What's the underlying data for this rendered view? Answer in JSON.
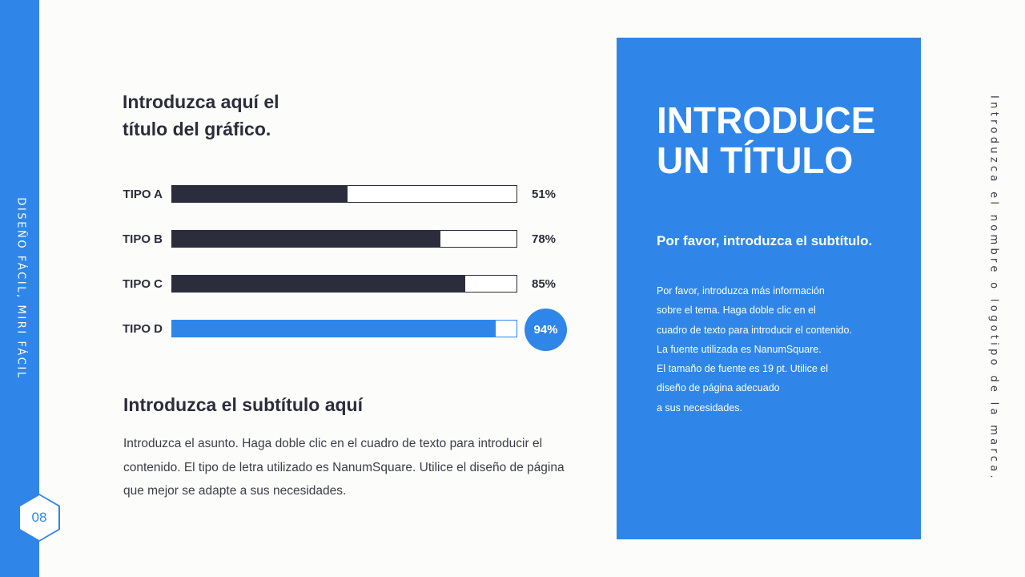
{
  "slide": {
    "side_label": "DISEÑO FÁCIL, MIRI FÁCIL",
    "page_number": "08",
    "brand_vertical": "Introduzca el nombre o logotipo de la marca."
  },
  "chart_data": {
    "type": "bar",
    "orientation": "horizontal",
    "title": "Introduzca aquí el título del gráfico.",
    "title_lines": [
      "Introduzca aquí el",
      "título del gráfico."
    ],
    "categories": [
      "TIPO A",
      "TIPO B",
      "TIPO C",
      "TIPO D"
    ],
    "values": [
      51,
      78,
      85,
      94
    ],
    "value_labels": [
      "51%",
      "78%",
      "85%",
      "94%"
    ],
    "xlim": [
      0,
      100
    ],
    "highlight_index": 3,
    "colors": {
      "default": "#2b2d3c",
      "highlight": "#2f86e8"
    }
  },
  "left": {
    "subtitle": "Introduzca el subtítulo aquí",
    "body": "Introduzca el asunto. Haga doble clic en el cuadro de texto para introducir el contenido. El tipo de letra utilizado es NanumSquare. Utilice el diseño de página que mejor se adapte a sus necesidades."
  },
  "panel": {
    "title_lines": [
      "INTRODUCE",
      "UN TÍTULO"
    ],
    "subtitle": "Por favor, introduzca el subtítulo.",
    "body_lines": [
      "Por favor, introduzca más información",
      "sobre el tema. Haga doble clic en el",
      "cuadro de texto para introducir el contenido.",
      "La fuente utilizada es NanumSquare.",
      "El tamaño de fuente es 19 pt. Utilice el",
      "diseño de página adecuado",
      "a sus necesidades."
    ]
  },
  "colors": {
    "accent": "#2f86e8",
    "dark": "#2b2d3c",
    "background": "#fcfcfb"
  }
}
